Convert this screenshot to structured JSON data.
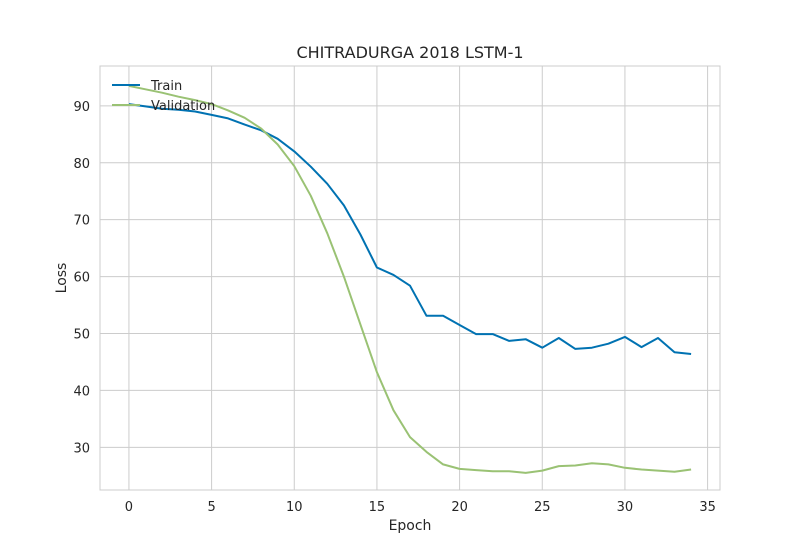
{
  "chart_data": {
    "type": "line",
    "title": "CHITRADURGA 2018 LSTM-1",
    "xlabel": "Epoch",
    "ylabel": "Loss",
    "xlim": [
      -1.75,
      35.75
    ],
    "ylim": [
      22.5,
      97.0
    ],
    "xticks": [
      0,
      5,
      10,
      15,
      20,
      25,
      30,
      35
    ],
    "yticks": [
      30,
      40,
      50,
      60,
      70,
      80,
      90
    ],
    "grid": true,
    "legend_position": "top-left",
    "x": [
      0,
      1,
      2,
      3,
      4,
      5,
      6,
      7,
      8,
      9,
      10,
      11,
      12,
      13,
      14,
      15,
      16,
      17,
      18,
      19,
      20,
      21,
      22,
      23,
      24,
      25,
      26,
      27,
      28,
      29,
      30,
      31,
      32,
      33,
      34
    ],
    "series": [
      {
        "name": "Train",
        "color": "#0072b2",
        "values": [
          90.3,
          89.9,
          89.5,
          89.3,
          89.0,
          88.4,
          87.8,
          86.7,
          85.7,
          84.2,
          82.0,
          79.3,
          76.3,
          72.5,
          67.4,
          61.6,
          60.3,
          58.4,
          53.1,
          53.1,
          51.5,
          49.9,
          49.9,
          48.7,
          49.0,
          47.5,
          49.2,
          47.3,
          47.5,
          48.2,
          49.4,
          47.6,
          49.2,
          46.7,
          46.4
        ]
      },
      {
        "name": "Validation",
        "color": "#9ac274",
        "values": [
          93.5,
          92.9,
          92.3,
          91.6,
          91.0,
          90.3,
          89.2,
          87.9,
          86.0,
          83.2,
          79.4,
          74.2,
          67.6,
          60.0,
          51.6,
          43.2,
          36.5,
          31.8,
          29.2,
          27.0,
          26.2,
          26.0,
          25.8,
          25.8,
          25.5,
          25.9,
          26.7,
          26.8,
          27.2,
          27.0,
          26.4,
          26.1,
          25.9,
          25.7,
          26.1
        ]
      }
    ]
  }
}
